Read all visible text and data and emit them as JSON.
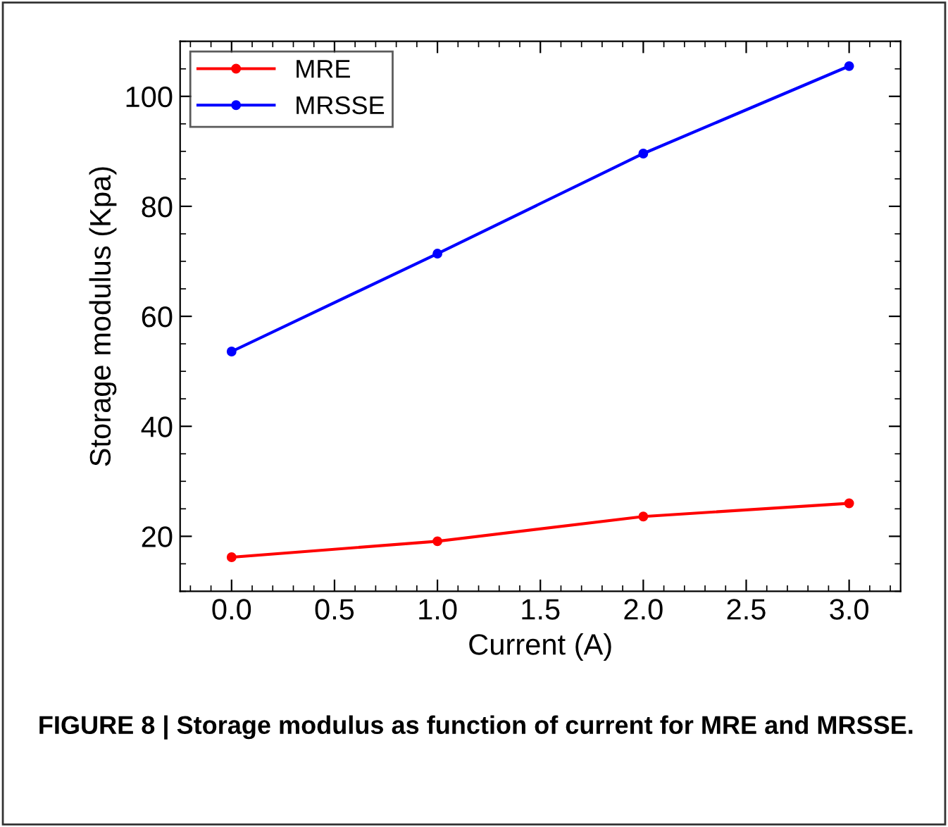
{
  "chart_data": {
    "type": "line",
    "xlabel": "Current (A)",
    "ylabel": "Storage modulus (Kpa)",
    "x": [
      0.0,
      1.0,
      2.0,
      3.0
    ],
    "series": [
      {
        "name": "MRE",
        "color": "#ff0000",
        "values": [
          16.2,
          19.1,
          23.6,
          26.0
        ]
      },
      {
        "name": "MRSSE",
        "color": "#0000ff",
        "values": [
          53.6,
          71.4,
          89.6,
          105.5
        ]
      }
    ],
    "xlim": [
      -0.25,
      3.25
    ],
    "xticks": [
      {
        "value": 0,
        "label": "0.0"
      },
      {
        "value": 0.5,
        "label": "0.5"
      },
      {
        "value": 1,
        "label": "1.0"
      },
      {
        "value": 1.5,
        "label": "1.5"
      },
      {
        "value": 2,
        "label": "2.0"
      },
      {
        "value": 2.5,
        "label": "2.5"
      },
      {
        "value": 3,
        "label": "3.0"
      }
    ],
    "ylim": [
      10,
      110
    ],
    "yticks": [
      20,
      40,
      60,
      80,
      100
    ],
    "marker": "circle",
    "line_style": "solid",
    "grid": false,
    "legend": "top left",
    "annotations": [
      "FIGURE 8 | Storage modulus as function of current for MRE and MRSSE."
    ]
  }
}
